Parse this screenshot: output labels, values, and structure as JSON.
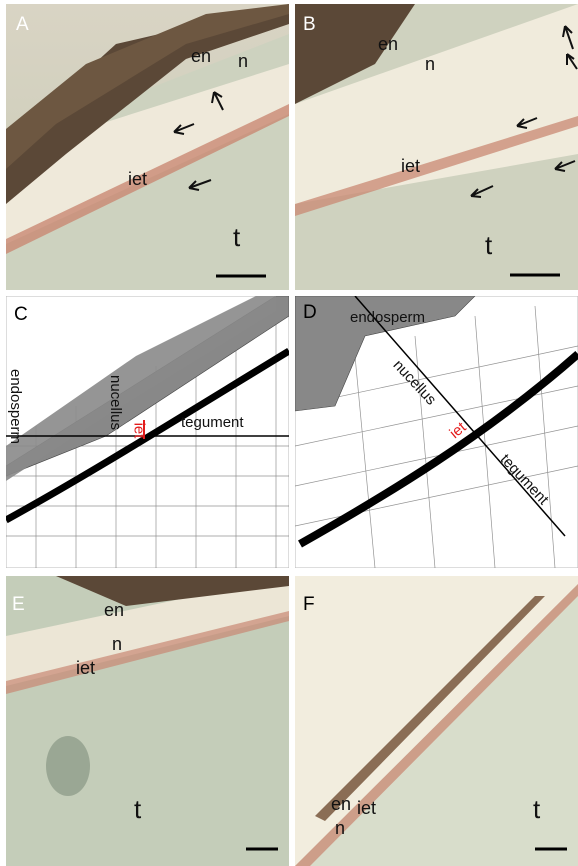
{
  "panels": {
    "A": {
      "letter": "A",
      "labels": {
        "en": "en",
        "n": "n",
        "iet": "iet",
        "t": "t"
      }
    },
    "B": {
      "letter": "B",
      "labels": {
        "en": "en",
        "n": "n",
        "iet": "iet",
        "t": "t"
      }
    },
    "C": {
      "letter": "C",
      "labels": {
        "endosperm": "endosperm",
        "nucellus": "nucellus",
        "iet": "iet",
        "tegument": "tegument"
      }
    },
    "D": {
      "letter": "D",
      "labels": {
        "endosperm": "endosperm",
        "nucellus": "nucellus",
        "iet": "iet",
        "tegument": "tegument"
      }
    },
    "E": {
      "letter": "E",
      "labels": {
        "en": "en",
        "n": "n",
        "iet": "iet",
        "t": "t"
      }
    },
    "F": {
      "letter": "F",
      "labels": {
        "en": "en",
        "n": "n",
        "iet": "iet",
        "t": "t"
      }
    }
  },
  "colors": {
    "endosperm_brown": "#5a4632",
    "nucellus_cream": "#f3eee0",
    "iet_red": "#c0705a",
    "tegument_green": "#cfd6c2",
    "diagram_cell_gray": "#888888",
    "diagram_red": "#e31b1b"
  }
}
